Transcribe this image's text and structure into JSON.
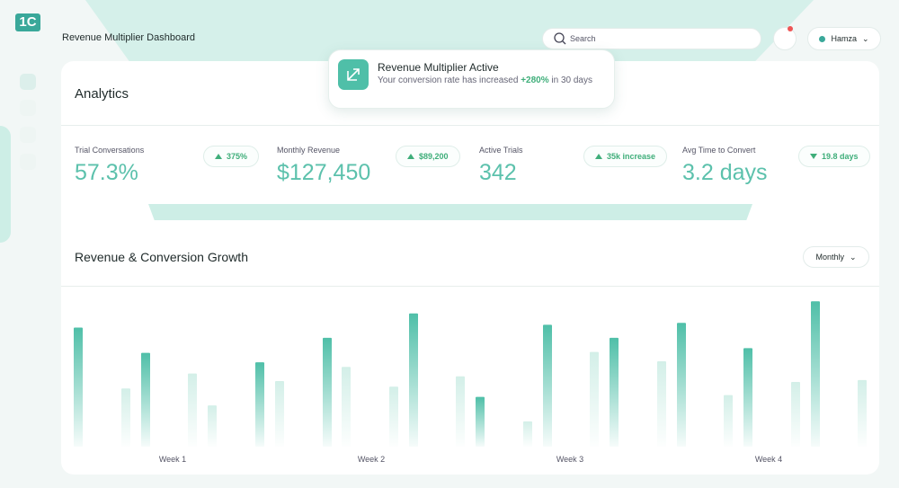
{
  "header": {
    "logo": "1C",
    "title": "Revenue Multiplier Dashboard",
    "search_placeholder": "Search",
    "user": "Hamza"
  },
  "toast": {
    "title": "Revenue Multiplier Active",
    "text_before": "Your conversion rate has increased",
    "highlight": "+280%",
    "text_after": "in 30 days"
  },
  "analytics": {
    "title": "Analytics",
    "stats": [
      {
        "label": "Trial Conversations",
        "value": "57.3%",
        "badge": "375%",
        "trend": "up"
      },
      {
        "label": "Monthly Revenue",
        "value": "$127,450",
        "badge": "$89,200",
        "trend": "up"
      },
      {
        "label": "Active Trials",
        "value": "342",
        "badge": "35k increase",
        "trend": "up"
      },
      {
        "label": "Avg Time to Convert",
        "value": "3.2 days",
        "badge": "19.8 days",
        "trend": "down"
      }
    ]
  },
  "growth": {
    "title": "Revenue & Conversion Growth",
    "period": "Monthly"
  },
  "chart_data": {
    "type": "bar",
    "week_labels": [
      "Week 1",
      "Week 2",
      "Week 3",
      "Week 4"
    ],
    "values": [
      127,
      62,
      100,
      78,
      44,
      90,
      70,
      116,
      85,
      64,
      142,
      75,
      53,
      27,
      130,
      101,
      116,
      91,
      132,
      55,
      105,
      69,
      155,
      71
    ],
    "colors": [
      "#4fbfa8",
      "#d3efe8",
      "#4fbfa8",
      "#d3efe8",
      "#d3efe8",
      "#4fbfa8",
      "#d3efe8",
      "#4fbfa8",
      "#d3efe8",
      "#d3efe8",
      "#4fbfa8",
      "#d3efe8",
      "#4fbfa8",
      "#d3efe8",
      "#4fbfa8",
      "#d3efe8",
      "#4fbfa8",
      "#d3efe8",
      "#4fbfa8",
      "#d3efe8",
      "#4fbfa8",
      "#d3efe8",
      "#4fbfa8",
      "#d3efe8"
    ],
    "ylim": [
      0,
      160
    ]
  }
}
